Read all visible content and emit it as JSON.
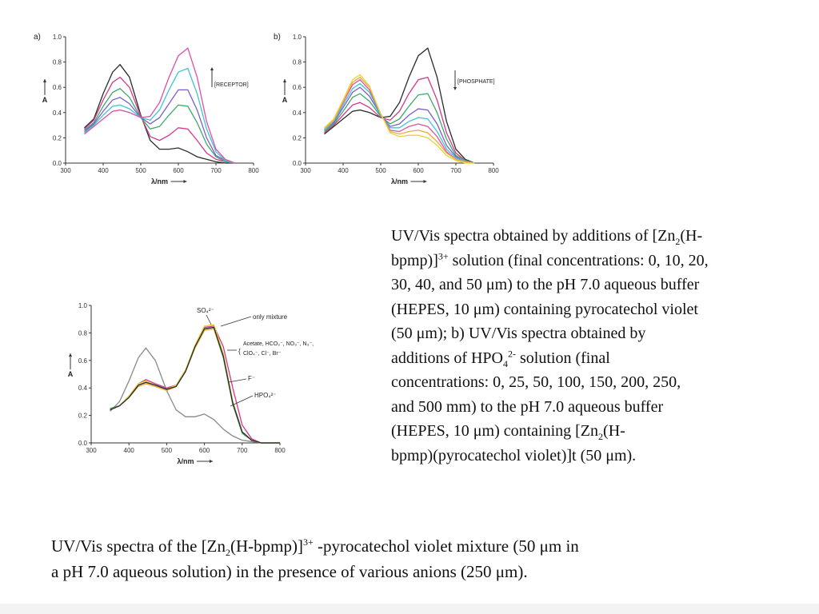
{
  "chart_data": [
    {
      "type": "line",
      "panel_label": "a)",
      "xlabel": "λ/nm",
      "ylabel": "A",
      "xlim": [
        300,
        800
      ],
      "ylim": [
        0.0,
        1.0
      ],
      "x_ticks": [
        "300",
        "400",
        "500",
        "600",
        "700",
        "800"
      ],
      "y_ticks": [
        "0.0",
        "0.2",
        "0.4",
        "0.6",
        "0.8",
        "1.0"
      ],
      "annotation": "[RECEPTOR]",
      "arrow": "up",
      "x": [
        350,
        375,
        400,
        425,
        445,
        470,
        500,
        525,
        550,
        575,
        600,
        625,
        650,
        675,
        700,
        725,
        750
      ],
      "series": [
        {
          "color": "#2b2b2b",
          "values": [
            0.28,
            0.35,
            0.55,
            0.72,
            0.78,
            0.68,
            0.38,
            0.18,
            0.11,
            0.11,
            0.12,
            0.09,
            0.05,
            0.03,
            0.01,
            0.0,
            0.0
          ]
        },
        {
          "color": "#d2398a",
          "values": [
            0.27,
            0.34,
            0.5,
            0.64,
            0.68,
            0.6,
            0.37,
            0.21,
            0.18,
            0.22,
            0.28,
            0.27,
            0.18,
            0.08,
            0.03,
            0.01,
            0.0
          ]
        },
        {
          "color": "#3daa68",
          "values": [
            0.26,
            0.32,
            0.45,
            0.56,
            0.59,
            0.52,
            0.36,
            0.27,
            0.29,
            0.38,
            0.46,
            0.45,
            0.32,
            0.15,
            0.05,
            0.01,
            0.0
          ]
        },
        {
          "color": "#7b5ecb",
          "values": [
            0.25,
            0.31,
            0.41,
            0.5,
            0.52,
            0.47,
            0.36,
            0.31,
            0.36,
            0.47,
            0.58,
            0.58,
            0.42,
            0.2,
            0.06,
            0.02,
            0.0
          ]
        },
        {
          "color": "#3fc5d6",
          "values": [
            0.24,
            0.3,
            0.38,
            0.45,
            0.46,
            0.43,
            0.36,
            0.34,
            0.42,
            0.58,
            0.72,
            0.75,
            0.55,
            0.27,
            0.09,
            0.02,
            0.0
          ]
        },
        {
          "color": "#e04ea6",
          "values": [
            0.23,
            0.29,
            0.35,
            0.41,
            0.42,
            0.4,
            0.36,
            0.37,
            0.48,
            0.68,
            0.85,
            0.91,
            0.68,
            0.33,
            0.11,
            0.03,
            0.0
          ]
        }
      ]
    },
    {
      "type": "line",
      "panel_label": "b)",
      "xlabel": "λ/nm",
      "ylabel": "A",
      "xlim": [
        300,
        800
      ],
      "ylim": [
        0.0,
        1.0
      ],
      "x_ticks": [
        "300",
        "400",
        "500",
        "600",
        "700",
        "800"
      ],
      "y_ticks": [
        "0.0",
        "0.2",
        "0.4",
        "0.6",
        "0.8",
        "1.0"
      ],
      "annotation": "[PHOSPHATE]",
      "arrow": "down",
      "x": [
        350,
        375,
        400,
        425,
        445,
        470,
        500,
        525,
        550,
        575,
        600,
        625,
        650,
        675,
        700,
        725,
        750
      ],
      "series": [
        {
          "color": "#2b2b2b",
          "values": [
            0.23,
            0.29,
            0.35,
            0.41,
            0.42,
            0.4,
            0.36,
            0.37,
            0.48,
            0.68,
            0.85,
            0.91,
            0.68,
            0.33,
            0.11,
            0.03,
            0.0
          ]
        },
        {
          "color": "#d2398a",
          "values": [
            0.24,
            0.3,
            0.38,
            0.46,
            0.48,
            0.44,
            0.36,
            0.34,
            0.41,
            0.55,
            0.66,
            0.68,
            0.5,
            0.24,
            0.08,
            0.02,
            0.0
          ]
        },
        {
          "color": "#3daa68",
          "values": [
            0.25,
            0.31,
            0.41,
            0.52,
            0.55,
            0.49,
            0.37,
            0.31,
            0.35,
            0.45,
            0.54,
            0.55,
            0.4,
            0.19,
            0.06,
            0.02,
            0.0
          ]
        },
        {
          "color": "#7b5ecb",
          "values": [
            0.26,
            0.32,
            0.44,
            0.56,
            0.6,
            0.53,
            0.38,
            0.29,
            0.31,
            0.38,
            0.43,
            0.42,
            0.31,
            0.14,
            0.05,
            0.01,
            0.0
          ]
        },
        {
          "color": "#3fc5d6",
          "values": [
            0.26,
            0.33,
            0.46,
            0.59,
            0.63,
            0.56,
            0.38,
            0.28,
            0.28,
            0.33,
            0.36,
            0.35,
            0.25,
            0.11,
            0.04,
            0.01,
            0.0
          ]
        },
        {
          "color": "#e04ea6",
          "values": [
            0.27,
            0.34,
            0.48,
            0.62,
            0.66,
            0.58,
            0.39,
            0.26,
            0.25,
            0.29,
            0.31,
            0.29,
            0.21,
            0.09,
            0.03,
            0.01,
            0.0
          ]
        },
        {
          "color": "#f2a83a",
          "values": [
            0.27,
            0.34,
            0.49,
            0.64,
            0.68,
            0.6,
            0.39,
            0.25,
            0.23,
            0.25,
            0.26,
            0.24,
            0.17,
            0.08,
            0.03,
            0.01,
            0.0
          ]
        },
        {
          "color": "#e8d23a",
          "values": [
            0.28,
            0.35,
            0.5,
            0.66,
            0.7,
            0.61,
            0.39,
            0.24,
            0.21,
            0.22,
            0.22,
            0.2,
            0.14,
            0.06,
            0.02,
            0.0,
            0.0
          ]
        }
      ]
    },
    {
      "type": "line",
      "panel_label": "",
      "xlabel": "λ/nm",
      "ylabel": "A",
      "xlim": [
        300,
        800
      ],
      "ylim": [
        0.0,
        1.0
      ],
      "x_ticks": [
        "300",
        "400",
        "500",
        "600",
        "700",
        "800"
      ],
      "y_ticks": [
        "0.0",
        "0.2",
        "0.4",
        "0.6",
        "0.8",
        "1.0"
      ],
      "labels": [
        "SO₄²⁻",
        "only mixture",
        "Acetate, HCO₃⁻, NO₃⁻, N₃⁻,",
        "ClO₄⁻, Cl⁻, Br⁻",
        "F⁻",
        "HPO₄²⁻"
      ],
      "x": [
        350,
        375,
        400,
        425,
        445,
        470,
        500,
        525,
        550,
        575,
        600,
        625,
        650,
        675,
        700,
        725,
        750,
        775,
        800
      ],
      "series": [
        {
          "color": "#888888",
          "values": [
            0.23,
            0.3,
            0.45,
            0.62,
            0.69,
            0.6,
            0.38,
            0.24,
            0.19,
            0.19,
            0.21,
            0.17,
            0.1,
            0.05,
            0.02,
            0.01,
            0.0,
            0.0,
            0.0
          ]
        },
        {
          "color": "#d2398a",
          "values": [
            0.25,
            0.27,
            0.34,
            0.43,
            0.46,
            0.43,
            0.4,
            0.42,
            0.53,
            0.7,
            0.84,
            0.85,
            0.7,
            0.4,
            0.13,
            0.03,
            0.0,
            0.0,
            0.0
          ]
        },
        {
          "color": "#7b5ecb",
          "values": [
            0.24,
            0.27,
            0.33,
            0.42,
            0.44,
            0.42,
            0.39,
            0.41,
            0.52,
            0.7,
            0.83,
            0.84,
            0.64,
            0.3,
            0.08,
            0.02,
            0.0,
            0.0,
            0.0
          ]
        },
        {
          "color": "#e8d23a",
          "values": [
            0.24,
            0.27,
            0.34,
            0.43,
            0.45,
            0.42,
            0.39,
            0.42,
            0.53,
            0.71,
            0.85,
            0.86,
            0.65,
            0.3,
            0.08,
            0.02,
            0.0,
            0.0,
            0.0
          ]
        },
        {
          "color": "#3daa68",
          "values": [
            0.25,
            0.27,
            0.33,
            0.42,
            0.44,
            0.42,
            0.39,
            0.41,
            0.52,
            0.69,
            0.82,
            0.83,
            0.62,
            0.28,
            0.07,
            0.02,
            0.0,
            0.0,
            0.0
          ]
        },
        {
          "color": "#f2a83a",
          "values": [
            0.24,
            0.27,
            0.33,
            0.41,
            0.43,
            0.41,
            0.38,
            0.41,
            0.52,
            0.69,
            0.82,
            0.83,
            0.63,
            0.29,
            0.08,
            0.02,
            0.0,
            0.0,
            0.0
          ]
        },
        {
          "color": "#2b2b2b",
          "values": [
            0.24,
            0.27,
            0.33,
            0.42,
            0.44,
            0.42,
            0.39,
            0.41,
            0.52,
            0.7,
            0.83,
            0.84,
            0.63,
            0.29,
            0.08,
            0.02,
            0.0,
            0.0,
            0.0
          ]
        }
      ]
    }
  ],
  "caption_right": {
    "l1a": "UV/Vis spectra obtained by additions of [Zn",
    "l1sub": "2",
    "l1b": "(H-",
    "l2a": "bpmp)]",
    "l2sup": "3+",
    "l2b": " solution (final concentrations: 0, 10, 20,",
    "l3": "30, 40, and 50 μm) to the pH 7.0 aqueous buffer",
    "l4": "(HEPES, 10 μm) containing pyrocatechol violet",
    "l5": "(50 μm); b) UV/Vis spectra obtained by",
    "l6a": "additions of HPO",
    "l6sub": "4",
    "l6sup": "2-",
    "l6b": " solution (final",
    "l7": "concentrations: 0, 25, 50, 100, 150, 200, 250,",
    "l8": "and 500 mm) to the pH 7.0 aqueous buffer",
    "l9a": "(HEPES, 10 μm) containing [Zn",
    "l9sub": "2",
    "l9b": "(H-",
    "l10": "bpmp)(pyrocatechol violet)]t (50 μm)."
  },
  "caption_bottom": {
    "l1a": "UV/Vis spectra of the [Zn",
    "l1sub": "2",
    "l1b": "(H-bpmp)]",
    "l1sup": "3+",
    "l1c": " -pyrocatechol violet mixture (50 μm in",
    "l2": "a pH 7.0 aqueous solution) in the presence of various anions (250 μm)."
  }
}
